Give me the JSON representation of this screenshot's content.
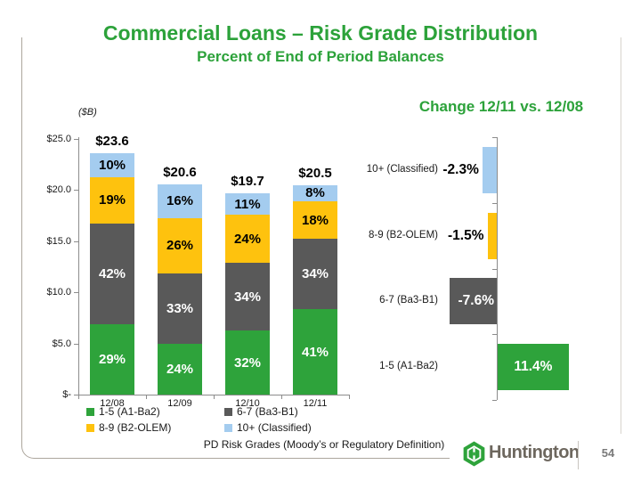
{
  "slide": {
    "title": "Commercial Loans – Risk Grade Distribution",
    "subtitle": "Percent of End of Period Balances",
    "footnote": "PD Risk Grades (Moody’s or Regulatory Definition)",
    "logo_text": "Huntington",
    "page_number": "54"
  },
  "colors": {
    "title_green": "#2ca23a",
    "grade_1_5": "#2ea33b",
    "grade_6_7": "#595959",
    "grade_8_9": "#fec20e",
    "grade_10": "#a4ccef",
    "axis": "#8c8c8c"
  },
  "chart_data": [
    {
      "type": "bar",
      "stacked": true,
      "unit_label": "($B)",
      "categories": [
        "12/08",
        "12/09",
        "12/10",
        "12/11"
      ],
      "totals": [
        23.6,
        20.6,
        19.7,
        20.5
      ],
      "total_labels": [
        "$23.6",
        "$20.6",
        "$19.7",
        "$20.5"
      ],
      "series": [
        {
          "name": "1-5 (A1-Ba2)",
          "color_key": "grade_1_5",
          "label_color": "#ffffff",
          "values": [
            29,
            24,
            32,
            41
          ]
        },
        {
          "name": "6-7 (Ba3-B1)",
          "color_key": "grade_6_7",
          "label_color": "#ffffff",
          "values": [
            42,
            33,
            34,
            34
          ]
        },
        {
          "name": "8-9 (B2-OLEM)",
          "color_key": "grade_8_9",
          "label_color": "#000000",
          "values": [
            19,
            26,
            24,
            18
          ]
        },
        {
          "name": "10+ (Classified)",
          "color_key": "grade_10",
          "label_color": "#000000",
          "values": [
            10,
            16,
            11,
            8
          ]
        }
      ],
      "y_ticks": [
        {
          "label": "$25.0",
          "value": 25
        },
        {
          "label": "$20.0",
          "value": 20
        },
        {
          "label": "$15.0",
          "value": 15
        },
        {
          "label": "$10.0",
          "value": 10
        },
        {
          "label": "$5.0",
          "value": 5
        },
        {
          "label": "$-",
          "value": 0
        }
      ],
      "ylim": [
        0,
        25
      ],
      "grid": false
    },
    {
      "type": "bar",
      "orientation": "horizontal",
      "title": "Change 12/11 vs. 12/08",
      "xlabel": "",
      "rows": [
        {
          "label": "10+ (Classified)",
          "value": -2.3,
          "display": "-2.3%",
          "color_key": "grade_10",
          "value_inside": false
        },
        {
          "label": "8-9 (B2-OLEM)",
          "value": -1.5,
          "display": "-1.5%",
          "color_key": "grade_8_9",
          "value_inside": false
        },
        {
          "label": "6-7 (Ba3-B1)",
          "value": -7.6,
          "display": "-7.6%",
          "color_key": "grade_6_7",
          "value_inside": true
        },
        {
          "label": "1-5 (A1-Ba2)",
          "value": 11.4,
          "display": "11.4%",
          "color_key": "grade_1_5",
          "value_inside": true
        }
      ]
    }
  ],
  "legend": {
    "items": [
      {
        "label": "1-5 (A1-Ba2)",
        "color_key": "grade_1_5"
      },
      {
        "label": "6-7 (Ba3-B1)",
        "color_key": "grade_6_7"
      },
      {
        "label": "8-9 (B2-OLEM)",
        "color_key": "grade_8_9"
      },
      {
        "label": "10+ (Classified)",
        "color_key": "grade_10"
      }
    ]
  }
}
